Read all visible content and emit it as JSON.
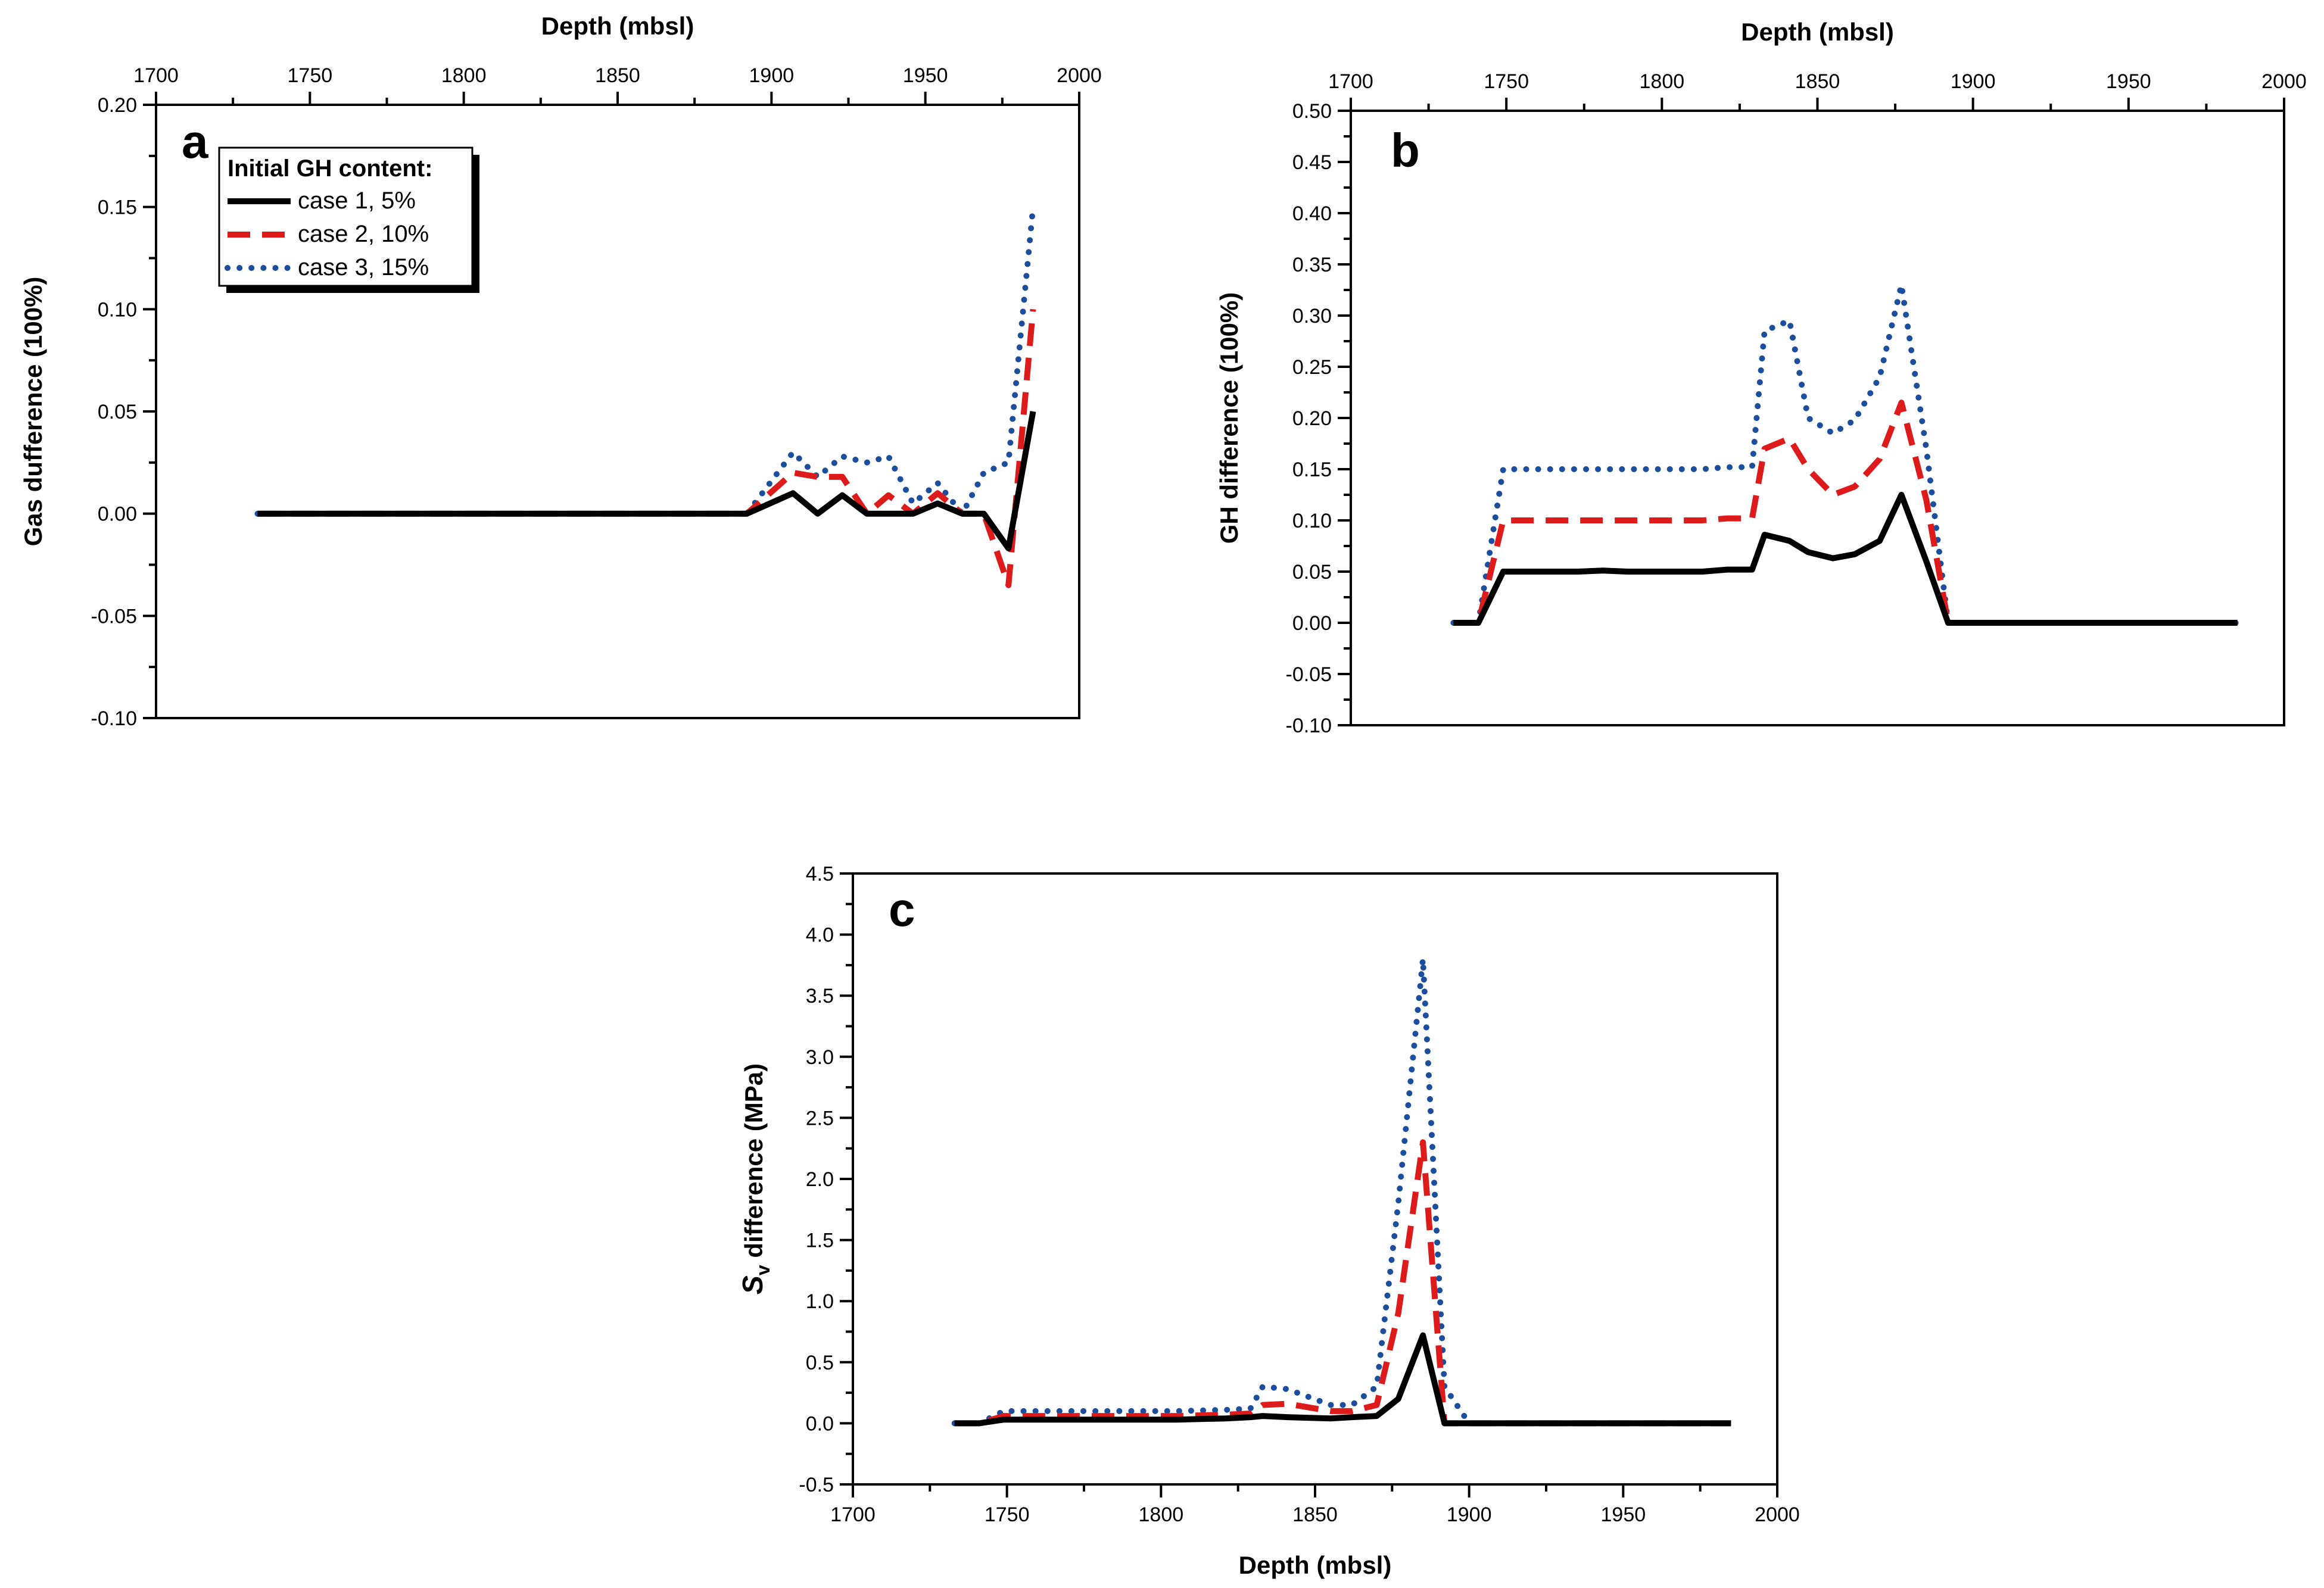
{
  "chart_data": [
    {
      "type": "line",
      "panel": "a",
      "xlabel": "Depth (mbsl)",
      "ylabel": "Gas dufference (100%)",
      "xlim": [
        1700,
        2000
      ],
      "ylim": [
        -0.1,
        0.2
      ],
      "x_ticks": [
        "1700",
        "1750",
        "1800",
        "1850",
        "1900",
        "1950",
        "2000"
      ],
      "y_ticks": [
        "-0.10",
        "-0.05",
        "0.00",
        "0.05",
        "0.10",
        "0.15",
        "0.20"
      ],
      "x_axis_position": "top",
      "legend": {
        "title": "Initial GH content:",
        "placement": "top-left",
        "entries": [
          "case 1, 5%",
          "case 2, 10%",
          "case 3, 15%"
        ]
      },
      "series": [
        {
          "name": "case 1, 5%",
          "color": "#000000",
          "style": "solid",
          "x": [
            1733,
            1892,
            1907,
            1915,
            1923,
            1931,
            1938,
            1946,
            1954,
            1962,
            1969,
            1977,
            1985
          ],
          "y": [
            0,
            0,
            0.01,
            0.0,
            0.009,
            0.0,
            0.0,
            0.0,
            0.005,
            0.0,
            0.0,
            -0.017,
            0.05
          ]
        },
        {
          "name": "case 2, 10%",
          "color": "#dd1b1b",
          "style": "dashed",
          "x": [
            1733,
            1892,
            1907,
            1915,
            1923,
            1931,
            1938,
            1946,
            1954,
            1962,
            1969,
            1977,
            1985
          ],
          "y": [
            0,
            0,
            0.02,
            0.018,
            0.018,
            0.0,
            0.009,
            0.0,
            0.01,
            0.0,
            0.0,
            -0.035,
            0.1
          ]
        },
        {
          "name": "case 3, 15%",
          "color": "#1c4e9e",
          "style": "dotted",
          "x": [
            1733,
            1892,
            1907,
            1915,
            1923,
            1931,
            1938,
            1946,
            1954,
            1962,
            1969,
            1977,
            1985
          ],
          "y": [
            0,
            0,
            0.03,
            0.018,
            0.028,
            0.025,
            0.028,
            0.005,
            0.015,
            0.0,
            0.02,
            0.025,
            0.15
          ]
        }
      ]
    },
    {
      "type": "line",
      "panel": "b",
      "xlabel": "Depth (mbsl)",
      "ylabel": "GH difference (100%)",
      "xlim": [
        1700,
        2000
      ],
      "ylim": [
        -0.1,
        0.5
      ],
      "x_ticks": [
        "1700",
        "1750",
        "1800",
        "1850",
        "1900",
        "1950",
        "2000"
      ],
      "y_ticks": [
        "-0.10",
        "-0.05",
        "0.00",
        "0.05",
        "0.10",
        "0.15",
        "0.20",
        "0.25",
        "0.30",
        "0.35",
        "0.40",
        "0.45",
        "0.50"
      ],
      "x_axis_position": "top",
      "series": [
        {
          "name": "case 1, 5%",
          "color": "#000000",
          "style": "solid",
          "x": [
            1733,
            1741,
            1749,
            1757,
            1765,
            1773,
            1781,
            1789,
            1797,
            1805,
            1813,
            1821,
            1829,
            1833,
            1841,
            1847,
            1855,
            1862,
            1870,
            1877,
            1885,
            1892,
            1900,
            1985
          ],
          "y": [
            0,
            0,
            0.05,
            0.05,
            0.05,
            0.05,
            0.051,
            0.05,
            0.05,
            0.05,
            0.05,
            0.052,
            0.052,
            0.086,
            0.08,
            0.069,
            0.063,
            0.067,
            0.08,
            0.125,
            0.06,
            0.0,
            0,
            0
          ]
        },
        {
          "name": "case 2, 10%",
          "color": "#dd1b1b",
          "style": "dashed",
          "x": [
            1733,
            1741,
            1749,
            1757,
            1765,
            1773,
            1781,
            1789,
            1797,
            1805,
            1813,
            1821,
            1829,
            1833,
            1841,
            1847,
            1855,
            1862,
            1870,
            1877,
            1885,
            1892,
            1900,
            1985
          ],
          "y": [
            0,
            0,
            0.1,
            0.1,
            0.1,
            0.1,
            0.1,
            0.1,
            0.1,
            0.1,
            0.1,
            0.102,
            0.102,
            0.17,
            0.18,
            0.15,
            0.125,
            0.133,
            0.16,
            0.215,
            0.12,
            0.0,
            0,
            0
          ]
        },
        {
          "name": "case 3, 15%",
          "color": "#1c4e9e",
          "style": "dotted",
          "x": [
            1733,
            1741,
            1749,
            1757,
            1765,
            1773,
            1781,
            1789,
            1797,
            1805,
            1813,
            1821,
            1829,
            1833,
            1841,
            1847,
            1855,
            1862,
            1870,
            1877,
            1885,
            1892,
            1900,
            1985
          ],
          "y": [
            0,
            0,
            0.15,
            0.15,
            0.15,
            0.15,
            0.15,
            0.15,
            0.15,
            0.15,
            0.15,
            0.152,
            0.152,
            0.285,
            0.295,
            0.2,
            0.185,
            0.198,
            0.24,
            0.33,
            0.17,
            0.0,
            0,
            0
          ]
        }
      ]
    },
    {
      "type": "line",
      "panel": "c",
      "xlabel": "Depth (mbsl)",
      "ylabel_italic": "S",
      "ylabel_subscript": "v",
      "ylabel_rest": " difference (MPa)",
      "xlim": [
        1700,
        2000
      ],
      "ylim": [
        -0.5,
        4.5
      ],
      "x_ticks": [
        "1700",
        "1750",
        "1800",
        "1850",
        "1900",
        "1950",
        "2000"
      ],
      "y_ticks": [
        "-0.5",
        "0.0",
        "0.5",
        "1.0",
        "1.5",
        "2.0",
        "2.5",
        "3.0",
        "3.5",
        "4.0",
        "4.5"
      ],
      "x_axis_position": "bottom",
      "series": [
        {
          "name": "case 1, 5%",
          "color": "#000000",
          "style": "solid",
          "x": [
            1733,
            1741,
            1749,
            1757,
            1773,
            1789,
            1805,
            1821,
            1829,
            1833,
            1841,
            1855,
            1862,
            1870,
            1877,
            1885,
            1892,
            1900,
            1985
          ],
          "y": [
            0,
            0,
            0.03,
            0.03,
            0.03,
            0.03,
            0.03,
            0.04,
            0.05,
            0.06,
            0.05,
            0.04,
            0.05,
            0.06,
            0.2,
            0.72,
            0.0,
            0,
            0
          ]
        },
        {
          "name": "case 2, 10%",
          "color": "#dd1b1b",
          "style": "dashed",
          "x": [
            1733,
            1741,
            1749,
            1757,
            1773,
            1789,
            1805,
            1821,
            1829,
            1833,
            1841,
            1855,
            1862,
            1870,
            1877,
            1885,
            1892,
            1900,
            1985
          ],
          "y": [
            0,
            0,
            0.06,
            0.06,
            0.06,
            0.06,
            0.06,
            0.07,
            0.08,
            0.15,
            0.16,
            0.1,
            0.1,
            0.15,
            0.9,
            2.3,
            0.0,
            0,
            0
          ]
        },
        {
          "name": "case 3, 15%",
          "color": "#1c4e9e",
          "style": "dotted",
          "x": [
            1733,
            1741,
            1749,
            1757,
            1773,
            1789,
            1805,
            1821,
            1829,
            1833,
            1841,
            1855,
            1862,
            1870,
            1877,
            1885,
            1892,
            1900,
            1985
          ],
          "y": [
            0,
            0,
            0.1,
            0.1,
            0.1,
            0.1,
            0.1,
            0.11,
            0.12,
            0.3,
            0.28,
            0.15,
            0.15,
            0.3,
            1.8,
            3.8,
            0.3,
            0,
            0
          ]
        }
      ]
    }
  ]
}
